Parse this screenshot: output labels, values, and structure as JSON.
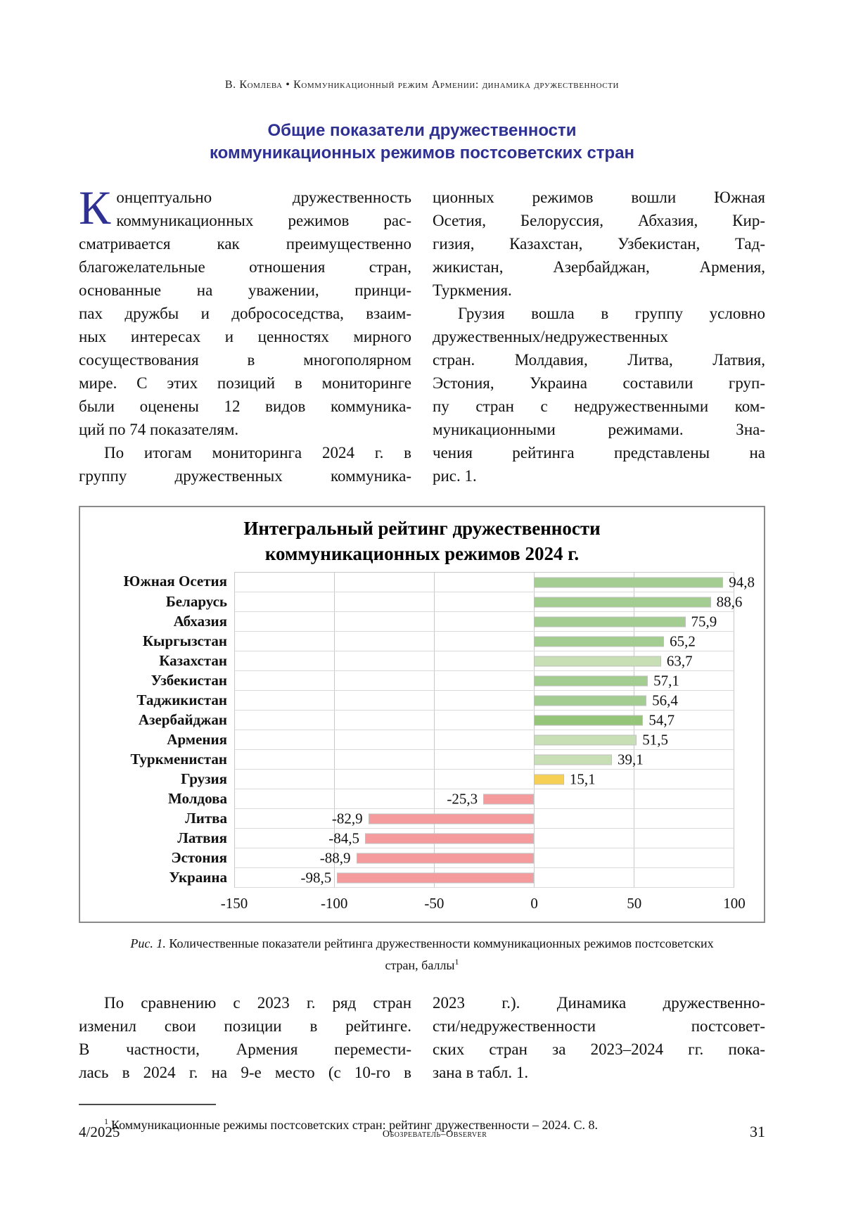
{
  "page": {
    "header": "В. Комлева • Коммуникационный режим Армении: динамика дружественности",
    "title_lines": [
      "Общие показатели дружественности",
      "коммуникационных режимов постсоветских стран"
    ]
  },
  "body": {
    "dropcap": "К",
    "top_left": {
      "lines": [
        {
          "t": "онцептуально дружественность"
        },
        {
          "t": "коммуникационных режимов рас-"
        },
        {
          "t": "сматривается как преимущественно"
        },
        {
          "t": "благожелательные отношения стран,"
        },
        {
          "t": "основанные на уважении, принци-"
        },
        {
          "t": "пах дружбы и добрососедства, взаим-"
        },
        {
          "t": "ных интересах и ценностях мирного"
        },
        {
          "t": "сосуществования в многополярном"
        },
        {
          "t": "мире. С этих позиций в мониторинге"
        },
        {
          "t": "были оценены 12 видов коммуника-"
        },
        {
          "t": "ций по 74 показателям.",
          "e": true
        },
        {
          "t": "По итогам мониторинга 2024 г. в",
          "i": true
        },
        {
          "t": "группу дружественных коммуника-"
        }
      ]
    },
    "top_right": {
      "lines": [
        {
          "t": "ционных режимов вошли Южная"
        },
        {
          "t": "Осетия, Белоруссия, Абхазия, Кир-"
        },
        {
          "t": "гизия, Казахстан, Узбекистан, Тад-"
        },
        {
          "t": "жикистан, Азербайджан, Армения,"
        },
        {
          "t": "Туркмения.",
          "e": true
        },
        {
          "t": "Грузия вошла в группу условно",
          "i": true
        },
        {
          "t": "дружественных/недружественных"
        },
        {
          "t": "стран. Молдавия, Литва, Латвия,"
        },
        {
          "t": "Эстония, Украина составили груп-"
        },
        {
          "t": "пу стран с недружественными ком-"
        },
        {
          "t": "муникационными режимами. Зна-"
        },
        {
          "t": "чения рейтинга представлены на"
        },
        {
          "t": "рис. 1.",
          "e": true
        }
      ]
    },
    "bottom_left": {
      "lines": [
        {
          "t": "По сравнению с 2023 г. ряд стран",
          "i": true
        },
        {
          "t": "изменил свои позиции в рейтинге."
        },
        {
          "t": "В частности, Армения перемести-"
        },
        {
          "t": "лась в 2024 г. на 9-е место (с 10-го в"
        }
      ]
    },
    "bottom_right": {
      "lines": [
        {
          "t": "2023 г.). Динамика дружественно-"
        },
        {
          "t": "сти/недружественности постсовет-"
        },
        {
          "t": "ских стран за 2023–2024 гг. пока-"
        },
        {
          "t": "зана в табл. 1.",
          "e": true
        }
      ]
    }
  },
  "chart_data": {
    "type": "bar",
    "orientation": "horizontal",
    "title_lines": [
      "Интегральный рейтинг дружественности",
      "коммуникационных режимов 2024 г."
    ],
    "categories": [
      "Южная Осетия",
      "Беларусь",
      "Абхазия",
      "Кыргызстан",
      "Казахстан",
      "Узбекистан",
      "Таджикистан",
      "Азербайджан",
      "Армения",
      "Туркменистан",
      "Грузия",
      "Молдова",
      "Литва",
      "Латвия",
      "Эстония",
      "Украина"
    ],
    "values": [
      94.8,
      88.6,
      75.9,
      65.2,
      63.7,
      57.1,
      56.4,
      54.7,
      51.5,
      39.1,
      15.1,
      -25.3,
      -82.9,
      -84.5,
      -88.9,
      -98.5
    ],
    "value_labels": [
      "94,8",
      "88,6",
      "75,9",
      "65,2",
      "63,7",
      "57,1",
      "56,4",
      "54,7",
      "51,5",
      "39,1",
      "15,1",
      "-25,3",
      "-82,9",
      "-84,5",
      "-88,9",
      "-98,5"
    ],
    "bar_color_keys": [
      "green_mid",
      "green_mid",
      "green_mid",
      "green_mid",
      "green_light",
      "green_mid",
      "green_mid",
      "green_dark",
      "green_light",
      "green_light",
      "yellow",
      "red",
      "red",
      "red",
      "red",
      "red"
    ],
    "xlim": [
      -150,
      100
    ],
    "x_ticks": [
      "-150",
      "-100",
      "-50",
      "0",
      "50",
      "100"
    ],
    "grid": true,
    "legend": false
  },
  "colors": {
    "accent_blue": "#2E3192",
    "green_mid": "#A3CD91",
    "green_light": "#C8DFB5",
    "green_dark": "#94C579",
    "yellow": "#F6D054",
    "red": "#F59B9D",
    "gridline": "#c9c9c9"
  },
  "caption": {
    "fig_label": "Рис. 1.",
    "text": " Количественные показатели рейтинга дружественности коммуникационных режимов постсоветских стран, баллы",
    "footnote_mark": "1"
  },
  "footnote": {
    "mark": "1",
    "text": "Коммуникационные режимы постсоветских стран: рейтинг дружественности – 2024. С. 8."
  },
  "footer": {
    "issue": "4/2025",
    "journal": "Обозреватель–Observer",
    "page_number": "31"
  }
}
